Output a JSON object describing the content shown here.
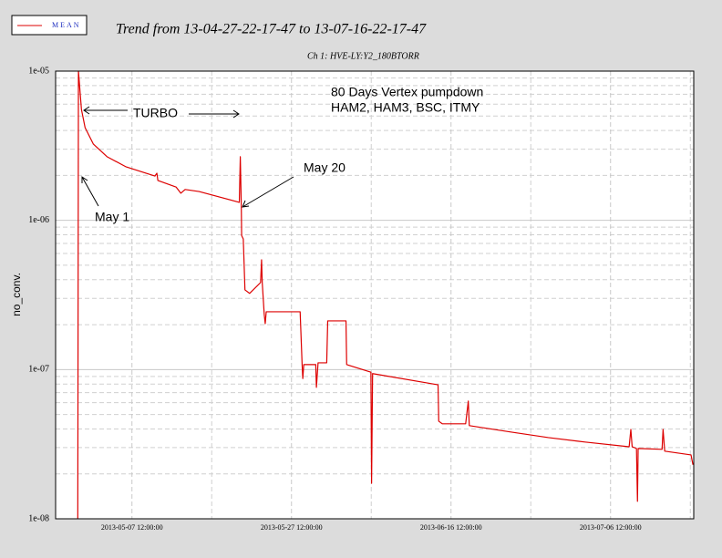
{
  "chart_data": {
    "type": "line",
    "title": "Trend from 13-04-27-22-17-47 to 13-07-16-22-17-47",
    "subtitle": "Ch 1: HVE-LY:Y2_180BTORR",
    "y_label": "no_conv.",
    "annotations": [
      "80 Days Vertex pumpdown",
      "HAM2, HAM3, BSC, ITMY",
      "TURBO",
      "May 20",
      "May 1"
    ],
    "log_y": true,
    "grid": true,
    "xlim": [
      "2013-04-27 22:17:47",
      "2013-07-16 22:17:47"
    ],
    "xticks": [
      "2013-05-07 12:00:00",
      "2013-05-27 12:00:00",
      "2013-06-16 12:00:00",
      "2013-07-06 12:00:00"
    ],
    "x_minor_ticks": [
      "2013-05-17 12:00:00",
      "2013-06-06 12:00:00",
      "2013-06-26 12:00:00",
      "2013-07-16 12:00:00"
    ],
    "ylim": [
      1e-08,
      1e-05
    ],
    "yticks": [
      {
        "value": 1e-08,
        "label": "1e-08"
      },
      {
        "value": 1e-07,
        "label": "1e-07"
      },
      {
        "value": 1e-06,
        "label": "1e-06"
      },
      {
        "value": 1e-05,
        "label": "1e-05"
      }
    ],
    "y_minor_ticks": [
      2e-08,
      3e-08,
      4e-08,
      5e-08,
      6e-08,
      7e-08,
      8e-08,
      9e-08,
      2e-07,
      3e-07,
      4e-07,
      5e-07,
      6e-07,
      7e-07,
      8e-07,
      9e-07,
      2e-06,
      3e-06,
      4e-06,
      5e-06,
      6e-06,
      7e-06,
      8e-06,
      9e-06
    ],
    "x": [
      "2013-04-30 17:00:00",
      "2013-04-30 19:00:00",
      "2013-05-01 04:00:00",
      "2013-05-01 15:00:00",
      "2013-05-02 16:00:00",
      "2013-05-04 09:00:00",
      "2013-05-06 17:00:00",
      "2013-05-10 09:00:00",
      "2013-05-10 15:00:00",
      "2013-05-10 18:00:00",
      "2013-05-13 01:00:00",
      "2013-05-13 15:00:00",
      "2013-05-14 04:00:00",
      "2013-05-15 22:00:00",
      "2013-05-20 23:00:00",
      "2013-05-21 02:00:00",
      "2013-05-21 05:00:00",
      "2013-05-21 06:00:00",
      "2013-05-21 11:00:00",
      "2013-05-21 16:00:00",
      "2013-05-22 06:00:00",
      "2013-05-23 15:00:00",
      "2013-05-23 18:00:00",
      "2013-05-23 20:00:00",
      "2013-05-24 02:00:00",
      "2013-05-24 05:00:00",
      "2013-05-24 08:00:00",
      "2013-05-28 14:00:00",
      "2013-05-28 20:00:00",
      "2013-05-28 22:00:00",
      "2013-05-29 01:00:00",
      "2013-05-30 13:00:00",
      "2013-05-30 15:00:00",
      "2013-05-30 20:00:00",
      "2013-05-31 22:00:00",
      "2013-06-01 01:00:00",
      "2013-06-03 08:00:00",
      "2013-06-03 10:00:00",
      "2013-06-06 11:00:00",
      "2013-06-06 13:00:00",
      "2013-06-06 16:00:00",
      "2013-06-14 21:00:00",
      "2013-06-14 23:00:00",
      "2013-06-15 10:00:00",
      "2013-06-18 08:00:00",
      "2013-06-18 16:00:00",
      "2013-06-18 19:00:00",
      "2013-06-24 02:00:00",
      "2013-06-28 17:00:00",
      "2013-07-03 07:00:00",
      "2013-07-08 20:00:00",
      "2013-07-09 01:00:00",
      "2013-07-09 05:00:00",
      "2013-07-09 18:00:00",
      "2013-07-09 21:00:00",
      "2013-07-09 23:00:00",
      "2013-07-12 23:00:00",
      "2013-07-13 02:00:00",
      "2013-07-13 07:00:00",
      "2013-07-16 14:00:00",
      "2013-07-16 20:00:00"
    ],
    "series": [
      {
        "name": "MEAN",
        "color": "#dd0000",
        "values": [
          1e-08,
          1e-05,
          5.54e-06,
          4.18e-06,
          3.24e-06,
          2.67e-06,
          2.29e-06,
          1.98e-06,
          2.07e-06,
          1.85e-06,
          1.67e-06,
          1.52e-06,
          1.61e-06,
          1.56e-06,
          1.32e-06,
          2.67e-06,
          1.26e-06,
          7.9e-07,
          7.5e-07,
          3.42e-07,
          3.24e-07,
          3.83e-07,
          5.44e-07,
          3.83e-07,
          2.34e-07,
          2.03e-07,
          2.44e-07,
          2.44e-07,
          1.08e-07,
          8.7e-08,
          1.08e-07,
          1.08e-07,
          7.6e-08,
          1.11e-07,
          1.11e-07,
          2.12e-07,
          2.12e-07,
          1.08e-07,
          9.6e-08,
          1.73e-08,
          9.4e-08,
          7.9e-08,
          4.51e-08,
          4.33e-08,
          4.33e-08,
          6.15e-08,
          4.21e-08,
          3.81e-08,
          3.5e-08,
          3.27e-08,
          3.04e-08,
          3.97e-08,
          3.04e-08,
          2.96e-08,
          1.31e-08,
          2.96e-08,
          2.92e-08,
          3.97e-08,
          2.84e-08,
          2.68e-08,
          2.3e-08
        ]
      }
    ]
  }
}
